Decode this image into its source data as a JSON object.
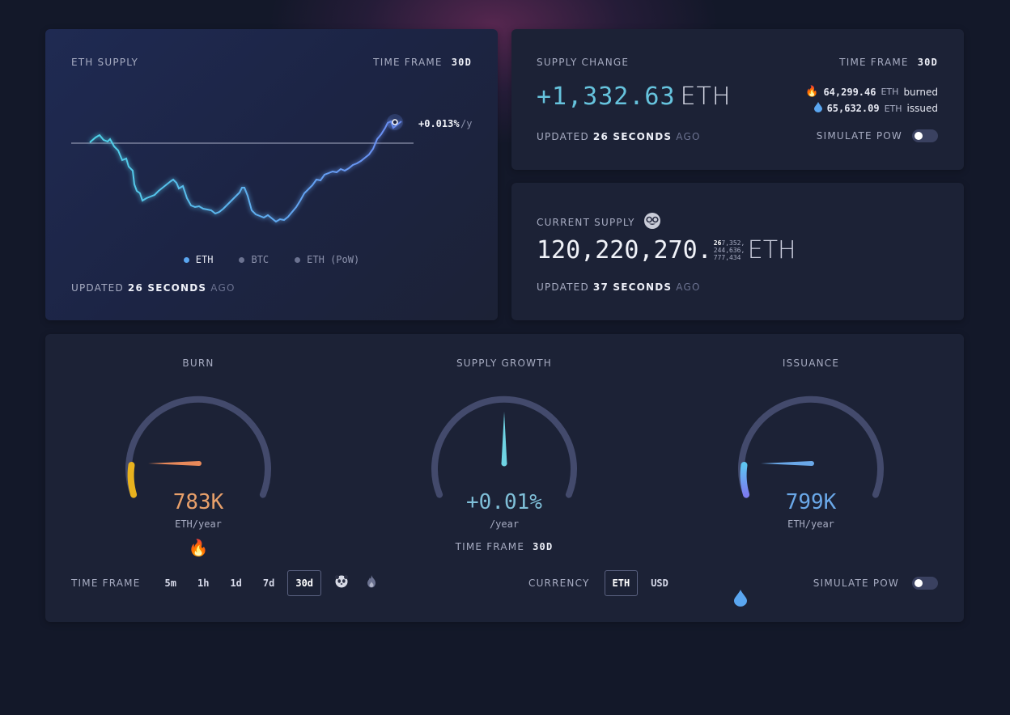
{
  "supply_chart": {
    "title": "ETH SUPPLY",
    "time_frame_label": "TIME FRAME",
    "time_frame_value": "30d",
    "annotation_value": "+0.013%",
    "annotation_unit": "/y",
    "legend": [
      {
        "label": "ETH",
        "color": "#5aa6f0"
      },
      {
        "label": "BTC",
        "color": "#6b7290"
      },
      {
        "label": "ETH (PoW)",
        "color": "#6b7290"
      }
    ],
    "updated_prefix": "UPDATED",
    "updated_value": "26 SECONDS",
    "updated_suffix": "AGO"
  },
  "supply_change": {
    "title": "SUPPLY CHANGE",
    "time_frame_label": "TIME FRAME",
    "time_frame_value": "30d",
    "value": "+1,332.63",
    "unit": "ETH",
    "burned_icon": "fire-icon",
    "burned_value": "64,299.46",
    "burned_unit": "ETH",
    "burned_label": "burned",
    "issued_icon": "droplet-icon",
    "issued_value": "65,632.09",
    "issued_unit": "ETH",
    "issued_label": "issued",
    "updated_prefix": "UPDATED",
    "updated_value": "26 SECONDS",
    "updated_suffix": "AGO",
    "simulate_label": "SIMULATE PoW"
  },
  "current_supply": {
    "title": "CURRENT SUPPLY",
    "title_icon": "nerd-face-icon",
    "value_main": "120,220,270.",
    "decimals_bold": "26",
    "decimals_line1": "7,352,",
    "decimals_line2": "244,636,",
    "decimals_line3": "777,434",
    "unit": "ETH",
    "updated_prefix": "UPDATED",
    "updated_value": "37 SECONDS",
    "updated_suffix": "AGO"
  },
  "gauges": {
    "burn": {
      "title": "BURN",
      "value": "783K",
      "unit": "ETH/year",
      "icon": "fire-icon",
      "color": "#e89a5c",
      "fill_fraction": 0.15
    },
    "growth": {
      "title": "SUPPLY GROWTH",
      "value": "+0.01%",
      "unit": "/year",
      "time_frame_label": "TIME FRAME",
      "time_frame_value": "30d",
      "color": "#6fc4d6"
    },
    "issuance": {
      "title": "ISSUANCE",
      "value": "799K",
      "unit": "ETH/year",
      "icon": "droplet-icon",
      "color": "#6aa8e8",
      "fill_fraction": 0.15
    }
  },
  "controls": {
    "time_frame_label": "TIME FRAME",
    "time_frames": [
      "5m",
      "1h",
      "1d",
      "7d",
      "30d"
    ],
    "active_time_frame": "30d",
    "extra_icons": [
      "panda-icon",
      "flame-outline-icon"
    ],
    "currency_label": "CURRENCY",
    "currencies": [
      "ETH",
      "USD"
    ],
    "active_currency": "ETH",
    "simulate_label": "SIMULATE PoW"
  }
}
